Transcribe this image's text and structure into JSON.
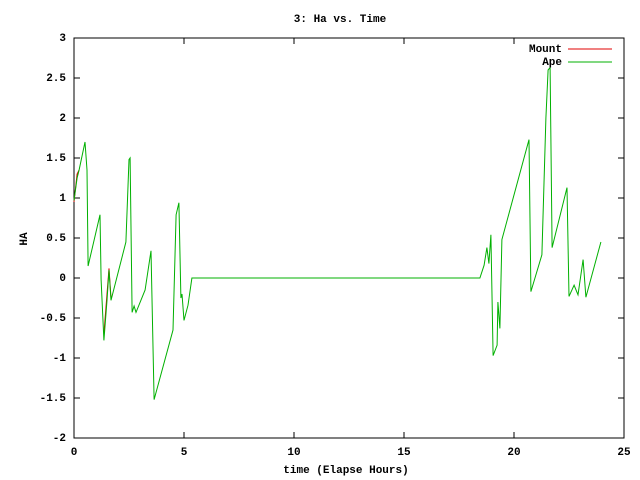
{
  "chart_data": {
    "type": "line",
    "title": "3: Ha vs. Time",
    "x_label": "time (Elapse Hours)",
    "y_label": "HA",
    "xlim": [
      0,
      25
    ],
    "xticks": [
      0,
      5,
      10,
      15,
      20,
      25
    ],
    "ylim": [
      -2,
      3
    ],
    "yticks": [
      -2,
      -1.5,
      -1,
      -0.5,
      0,
      0.5,
      1,
      1.5,
      2,
      2.5,
      3
    ],
    "grid": false,
    "legend": "top-right",
    "series": [
      {
        "name": "Mount",
        "color": "#e00000",
        "x": [
          0,
          0.14,
          0.23,
          null,
          1.36,
          1.5,
          1.59,
          1.68
        ],
        "values": [
          0.95,
          1.3,
          1.35,
          null,
          -0.7,
          -0.2,
          0.12,
          -0.25
        ]
      },
      {
        "name": "Ape",
        "color": "#00b000",
        "x": [
          0,
          0.14,
          0.23,
          0.5,
          0.59,
          0.64,
          1.18,
          1.23,
          1.36,
          1.5,
          1.59,
          1.68,
          2.36,
          2.5,
          2.55,
          2.64,
          2.73,
          2.82,
          3.23,
          3.5,
          3.64,
          4.5,
          4.64,
          4.77,
          4.86,
          4.91,
          5.0,
          5.18,
          5.36,
          18.45,
          18.64,
          18.77,
          18.86,
          18.95,
          19.05,
          19.23,
          19.27,
          19.36,
          19.45,
          20.68,
          20.77,
          21.27,
          21.45,
          21.55,
          21.64,
          21.73,
          22.41,
          22.5,
          22.73,
          22.91,
          23.14,
          23.27,
          23.95
        ],
        "values": [
          0.97,
          1.25,
          1.35,
          1.7,
          1.35,
          0.15,
          0.79,
          -0.02,
          -0.78,
          -0.28,
          0.1,
          -0.28,
          0.45,
          1.48,
          1.5,
          -0.43,
          -0.35,
          -0.43,
          -0.15,
          0.34,
          -1.52,
          -0.65,
          0.79,
          0.94,
          -0.25,
          -0.2,
          -0.53,
          -0.34,
          0,
          0,
          0.16,
          0.38,
          0.18,
          0.54,
          -0.97,
          -0.84,
          -0.3,
          -0.63,
          0.48,
          1.73,
          -0.17,
          0.29,
          2.0,
          2.6,
          2.63,
          0.38,
          1.13,
          -0.23,
          -0.09,
          -0.21,
          0.23,
          -0.24,
          0.45
        ]
      }
    ]
  }
}
